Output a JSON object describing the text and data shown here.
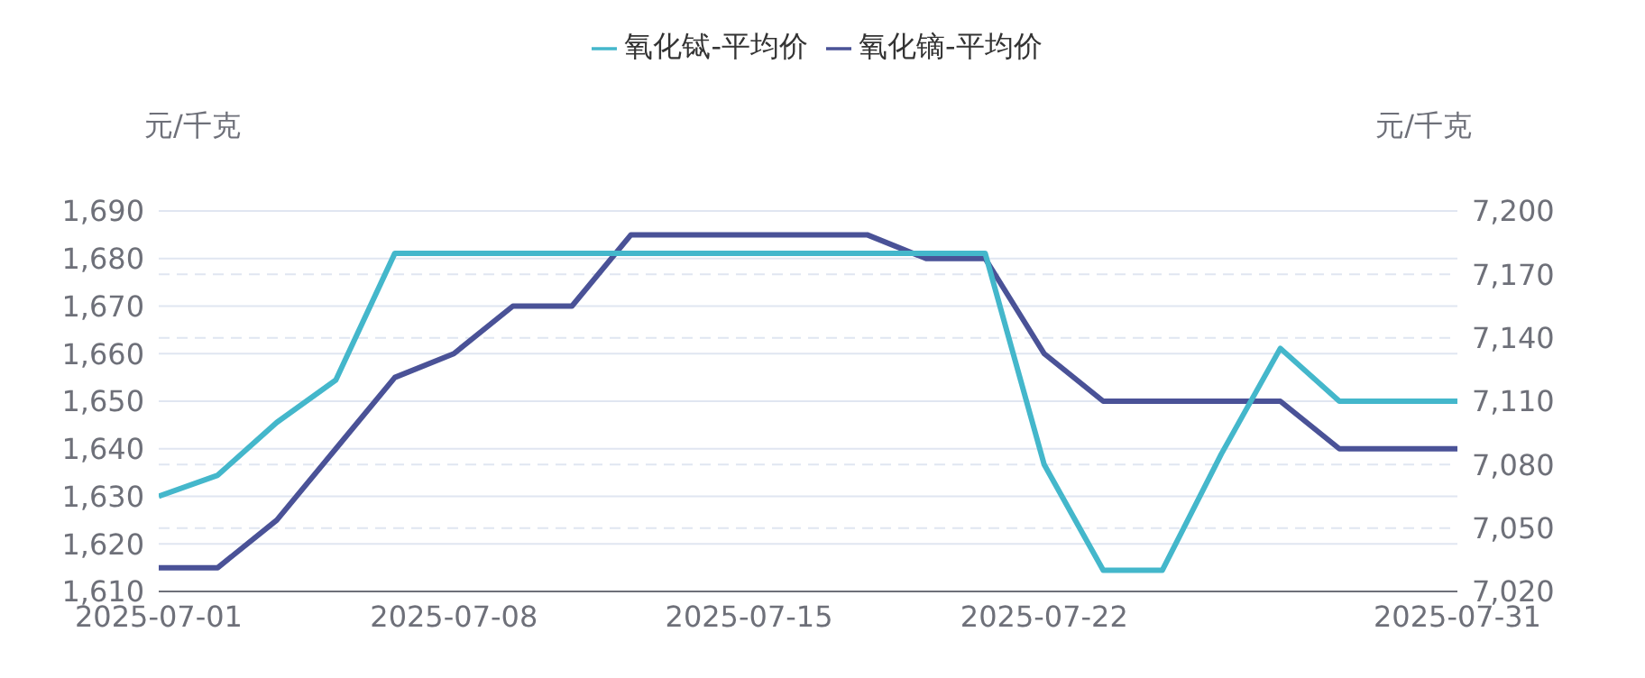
{
  "chart_data": {
    "type": "line",
    "ylabel": "元/千克",
    "y2label": "元/千克",
    "categories": [
      "2025-07-01",
      null,
      null,
      null,
      null,
      "2025-07-08",
      null,
      null,
      null,
      null,
      "2025-07-15",
      null,
      null,
      null,
      null,
      "2025-07-22",
      null,
      null,
      null,
      null,
      null,
      null,
      "2025-07-31"
    ],
    "series": [
      {
        "name": "氧化镝-平均价",
        "color": "#4a5297",
        "values": [
          1615,
          1615,
          1625,
          1640,
          1655,
          1660,
          1670,
          1670,
          1685,
          1685,
          1685,
          1685,
          1685,
          1680,
          1680,
          1660,
          1650,
          1650,
          1650,
          1650,
          1640,
          1640,
          1640
        ]
      },
      {
        "name": "氧化铽-平均价",
        "color": "#44b7cb",
        "axis": "y2",
        "values": [
          7065,
          7075,
          7100,
          7120,
          7180,
          7180,
          7180,
          7180,
          7180,
          7180,
          7180,
          7180,
          7180,
          7180,
          7180,
          7080,
          7030,
          7030,
          7085,
          7135,
          7110,
          7110,
          7110
        ]
      }
    ],
    "ylim": [
      1610,
      1690
    ],
    "yticks": [
      {
        "value": 1610,
        "label": "1,610"
      },
      {
        "value": 1620,
        "label": "1,620"
      },
      {
        "value": 1630,
        "label": "1,630"
      },
      {
        "value": 1640,
        "label": "1,640"
      },
      {
        "value": 1650,
        "label": "1,650"
      },
      {
        "value": 1660,
        "label": "1,660"
      },
      {
        "value": 1670,
        "label": "1,670"
      },
      {
        "value": 1680,
        "label": "1,680"
      },
      {
        "value": 1690,
        "label": "1,690"
      }
    ],
    "y2lim": [
      7020,
      7200
    ],
    "y2ticks": [
      {
        "value": 7020,
        "label": "7,020"
      },
      {
        "value": 7050,
        "label": "7,050"
      },
      {
        "value": 7080,
        "label": "7,080"
      },
      {
        "value": 7110,
        "label": "7,110"
      },
      {
        "value": 7140,
        "label": "7,140"
      },
      {
        "value": 7170,
        "label": "7,170"
      },
      {
        "value": 7200,
        "label": "7,200"
      }
    ],
    "grid": true,
    "legend": "top",
    "marker": "none",
    "line_style": "solid"
  }
}
